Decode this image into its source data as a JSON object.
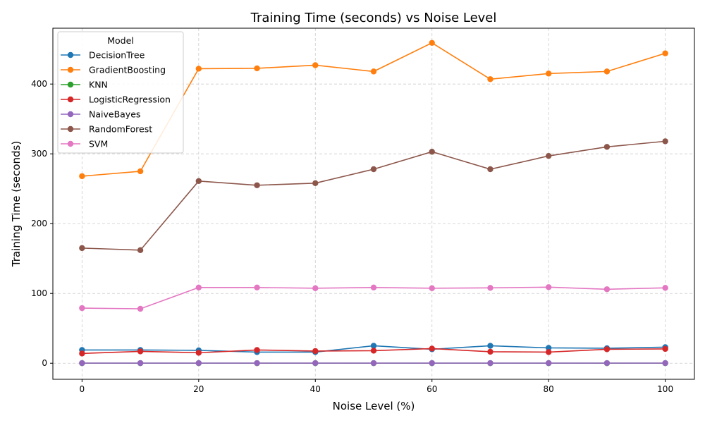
{
  "chart_data": {
    "type": "line",
    "title": "Training Time (seconds) vs Noise Level",
    "xlabel": "Noise Level (%)",
    "ylabel": "Training Time (seconds)",
    "xlim": [
      -5,
      105
    ],
    "ylim": [
      -23,
      480
    ],
    "xticks": [
      0,
      20,
      40,
      60,
      80,
      100
    ],
    "yticks": [
      0,
      100,
      200,
      300,
      400
    ],
    "grid": true,
    "legend": {
      "title": "Model",
      "placement": "top-left"
    },
    "x": [
      0,
      10,
      20,
      30,
      40,
      50,
      60,
      70,
      80,
      90,
      100
    ],
    "series": [
      {
        "name": "DecisionTree",
        "color": "#1f77b4",
        "values": [
          19,
          19,
          18.5,
          16,
          16,
          25,
          20,
          25,
          22,
          21.5,
          23
        ]
      },
      {
        "name": "GradientBoosting",
        "color": "#ff7f0e",
        "values": [
          268,
          275,
          422,
          422.5,
          427,
          418,
          459,
          407,
          415,
          418,
          444
        ]
      },
      {
        "name": "KNN",
        "color": "#2ca02c",
        "values": [
          0.1,
          0.1,
          0.1,
          0.1,
          0.1,
          0.1,
          0.1,
          0.1,
          0.1,
          0.1,
          0.1
        ]
      },
      {
        "name": "LogisticRegression",
        "color": "#d62728",
        "values": [
          14,
          17,
          15,
          19,
          17.5,
          18,
          21,
          16.5,
          16,
          20,
          20.5
        ]
      },
      {
        "name": "NaiveBayes",
        "color": "#9467bd",
        "values": [
          0.2,
          0.2,
          0.2,
          0.2,
          0.2,
          0.2,
          0.2,
          0.2,
          0.2,
          0.2,
          0.2
        ]
      },
      {
        "name": "RandomForest",
        "color": "#8c564b",
        "values": [
          165,
          162,
          261,
          255,
          258,
          278,
          303,
          278,
          297,
          310,
          318
        ]
      },
      {
        "name": "SVM",
        "color": "#e377c2",
        "values": [
          79,
          78,
          108.5,
          108.5,
          107.5,
          108.5,
          107.5,
          108,
          109,
          106,
          108
        ]
      }
    ]
  }
}
